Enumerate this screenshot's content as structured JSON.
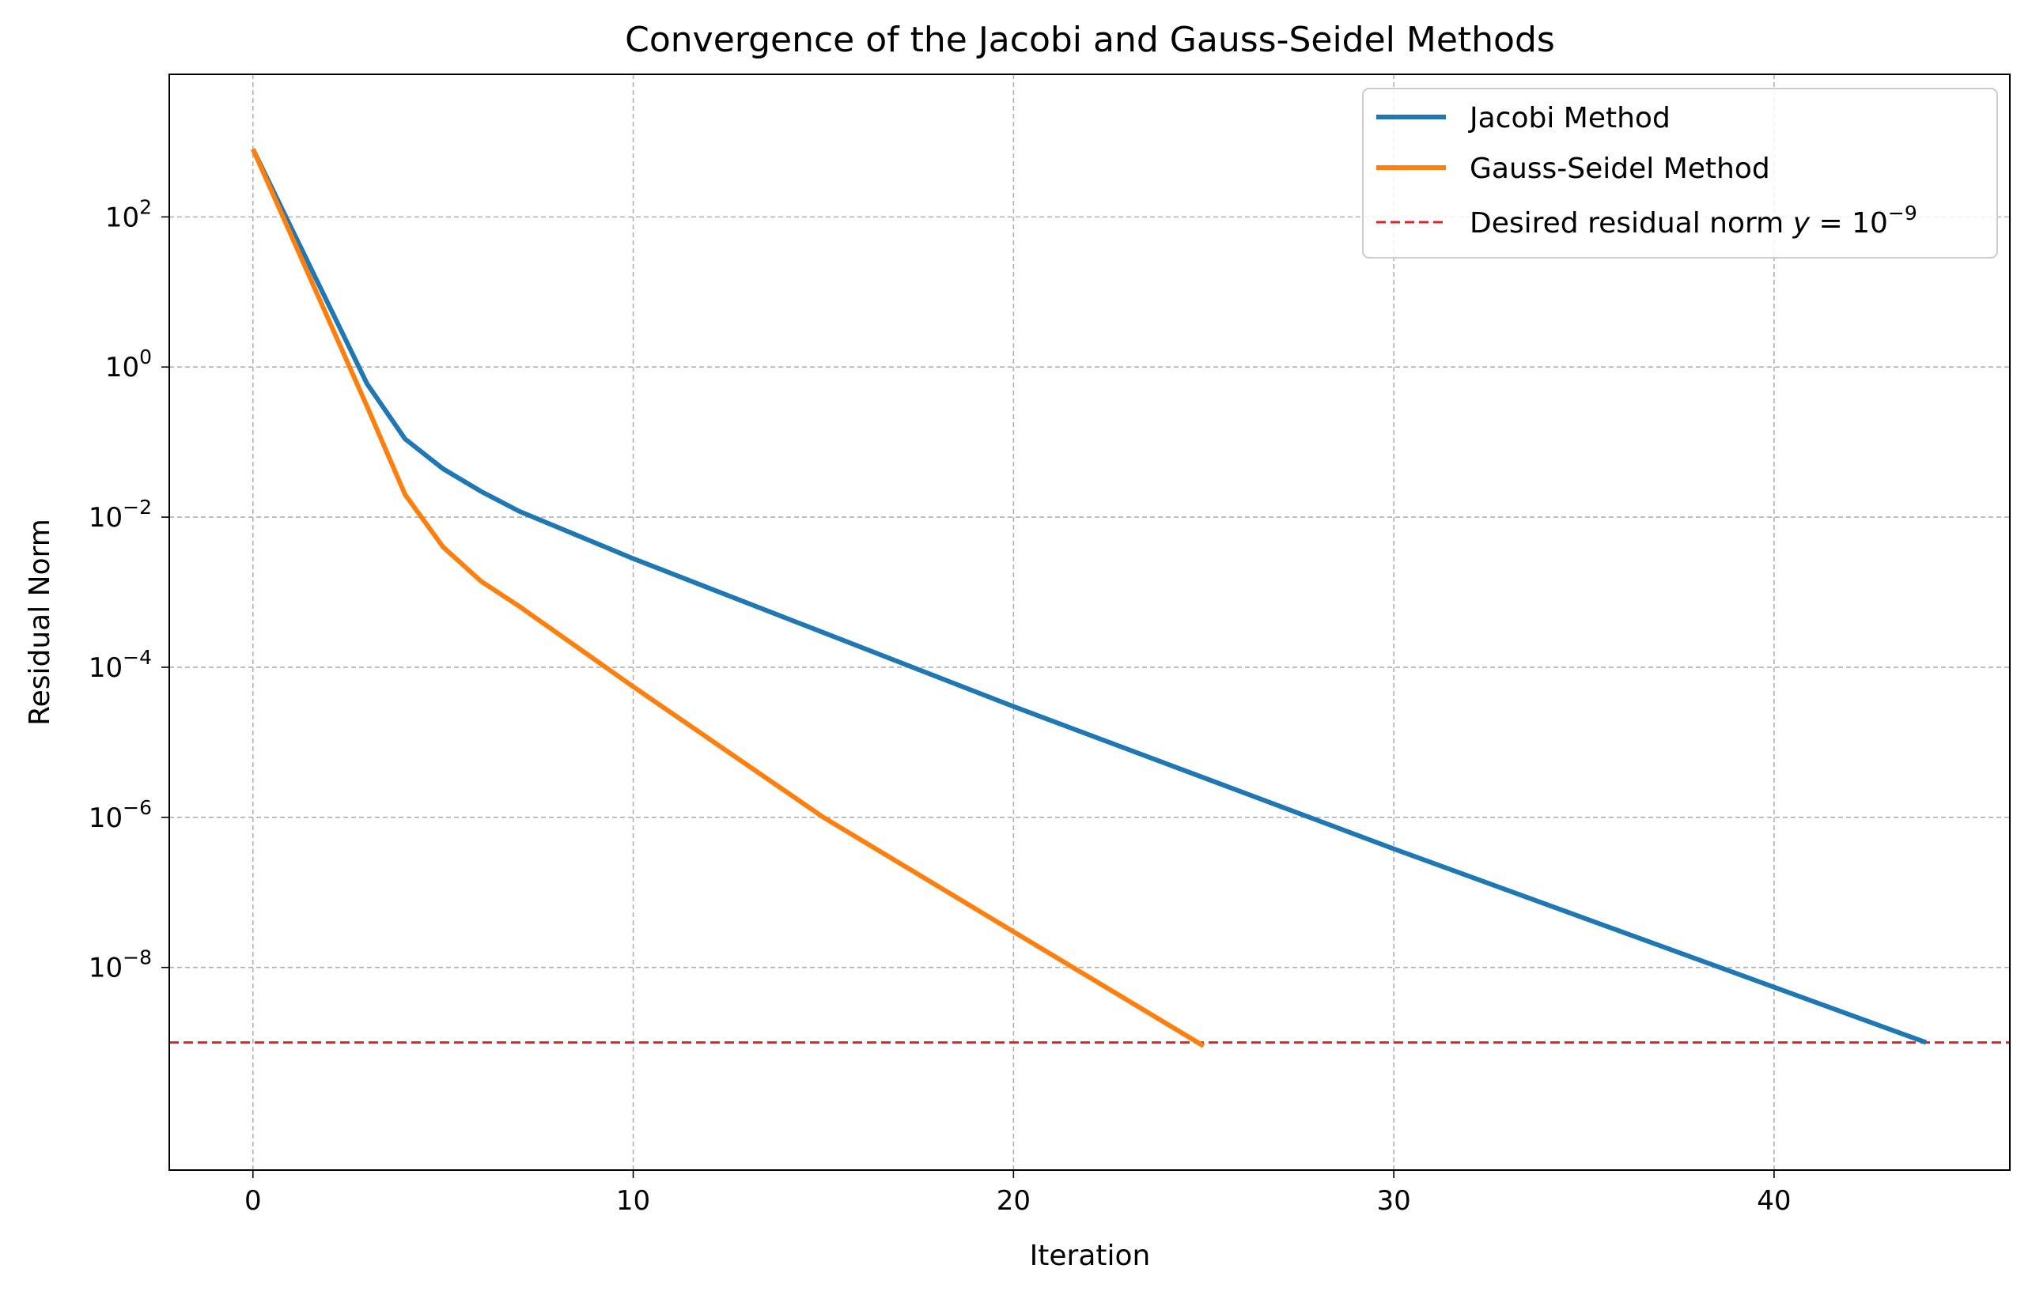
{
  "chart_data": {
    "type": "line",
    "title": "Convergence of the Jacobi and Gauss-Seidel Methods",
    "xlabel": "Iteration",
    "ylabel": "Residual Norm",
    "xlim": [
      -2.2,
      46.2
    ],
    "ylim_log10": [
      -10.7,
      3.9
    ],
    "yscale": "log",
    "grid": true,
    "legend_position": "top-right",
    "x_ticks": [
      0,
      10,
      20,
      30,
      40
    ],
    "y_ticks": [
      {
        "base": "10",
        "exp": "2",
        "log": 2
      },
      {
        "base": "10",
        "exp": "0",
        "log": 0
      },
      {
        "base": "10",
        "exp": "−2",
        "log": -2
      },
      {
        "base": "10",
        "exp": "−4",
        "log": -4
      },
      {
        "base": "10",
        "exp": "−6",
        "log": -6
      },
      {
        "base": "10",
        "exp": "−8",
        "log": -8
      }
    ],
    "series": [
      {
        "name": "Jacobi Method",
        "color": "#1f77b4",
        "style": "solid",
        "points": [
          [
            0,
            800
          ],
          [
            3,
            0.6
          ],
          [
            4,
            0.11
          ],
          [
            5,
            0.044
          ],
          [
            6,
            0.022
          ],
          [
            7,
            0.012
          ],
          [
            10,
            0.0028
          ],
          [
            20,
            3e-05
          ],
          [
            30,
            3.8e-07
          ],
          [
            44,
            1e-09
          ]
        ]
      },
      {
        "name": "Gauss-Seidel Method",
        "color": "#ff7f0e",
        "style": "solid",
        "points": [
          [
            0,
            800
          ],
          [
            3,
            0.3
          ],
          [
            4,
            0.02
          ],
          [
            5,
            0.004
          ],
          [
            6,
            0.0014
          ],
          [
            7,
            0.00065
          ],
          [
            10,
            5.5e-05
          ],
          [
            15,
            1e-06
          ],
          [
            20,
            3e-08
          ],
          [
            25,
            9e-10
          ]
        ]
      }
    ],
    "reference_line": {
      "label_prefix": "Desired residual norm ",
      "label_var": "y",
      "label_eq": " = 10",
      "label_exp": "−9",
      "y": 1e-09,
      "color": "#d62728",
      "style": "dashed"
    }
  }
}
